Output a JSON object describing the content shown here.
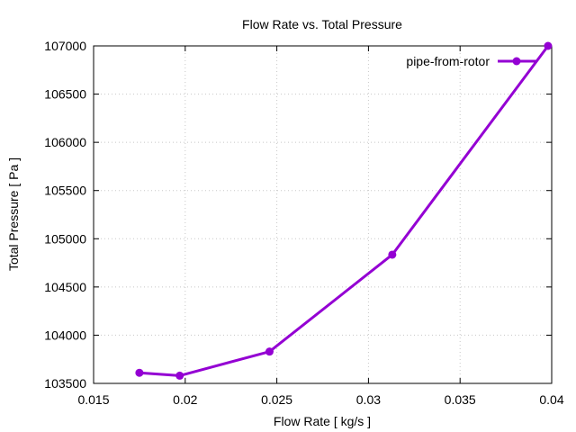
{
  "chart_data": {
    "type": "line",
    "title": "Flow Rate vs. Total Pressure",
    "xlabel": "Flow Rate [ kg/s ]",
    "ylabel": "Total Pressure [ Pa ]",
    "xlim": [
      0.015,
      0.04
    ],
    "ylim": [
      103500,
      107000
    ],
    "x_ticks": [
      0.015,
      0.02,
      0.025,
      0.03,
      0.035,
      0.04
    ],
    "x_tick_labels": [
      "0.015",
      "0.02",
      "0.025",
      "0.03",
      "0.035",
      "0.04"
    ],
    "y_ticks": [
      103500,
      104000,
      104500,
      105000,
      105500,
      106000,
      106500,
      107000
    ],
    "y_tick_labels": [
      "103500",
      "104000",
      "104500",
      "105000",
      "105500",
      "106000",
      "106500",
      "107000"
    ],
    "grid": true,
    "legend_position": "top-right",
    "series": [
      {
        "name": "pipe-from-rotor",
        "color": "#9400d3",
        "x": [
          0.0175,
          0.0197,
          0.0246,
          0.0313,
          0.0398
        ],
        "y": [
          103610,
          103580,
          103830,
          104835,
          107000
        ]
      }
    ]
  }
}
